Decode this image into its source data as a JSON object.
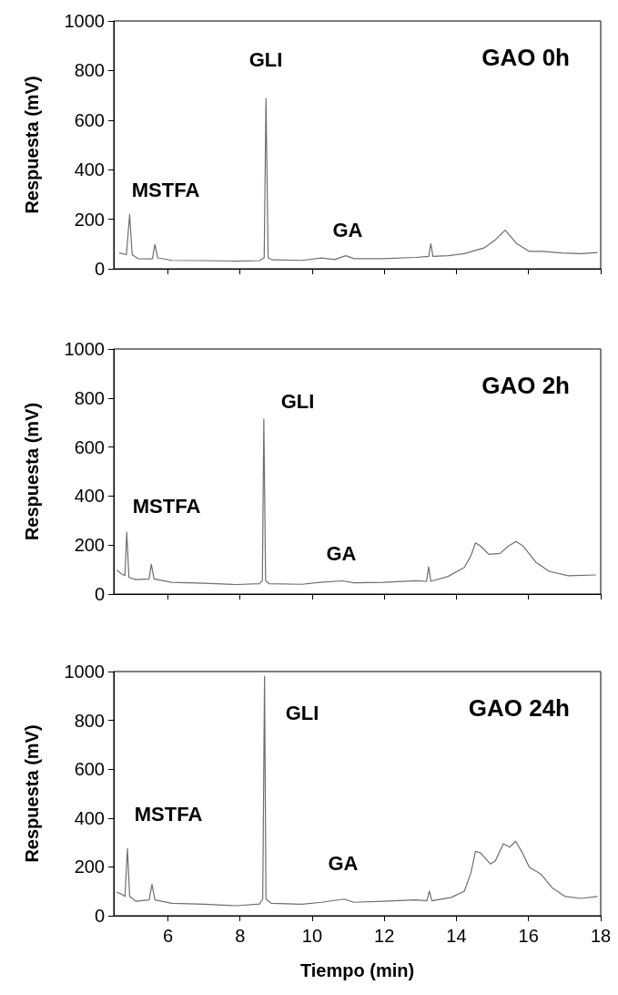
{
  "chart_data": [
    {
      "type": "line",
      "title": "GAO 0h",
      "ylabel": "Respuesta (mV)",
      "xlim": [
        4.5,
        18
      ],
      "xticks": [
        6,
        8,
        10,
        12,
        14,
        16,
        18
      ],
      "ylim": [
        0,
        1000
      ],
      "yticks": [
        0,
        200,
        400,
        600,
        800,
        1000
      ],
      "grid": false,
      "marker": "none",
      "line_style": "solid",
      "tick_labels": "y",
      "annotations": [
        "MSTFA",
        "GLI",
        "GA"
      ],
      "series": [
        {
          "color": "#6e6e6e",
          "x": [
            4.65,
            4.85,
            4.94,
            5.01,
            5.17,
            5.57,
            5.64,
            5.72,
            6.11,
            7.01,
            7.91,
            8.54,
            8.67,
            8.72,
            8.78,
            8.9,
            9.72,
            10.26,
            10.62,
            10.93,
            11.16,
            11.97,
            12.87,
            13.23,
            13.29,
            13.35,
            13.77,
            14.22,
            14.76,
            15.08,
            15.35,
            15.66,
            16.02,
            16.38,
            16.92,
            17.46,
            17.91
          ],
          "values": [
            64,
            57,
            219,
            57,
            41,
            40,
            98,
            44,
            34,
            33,
            31,
            33,
            44,
            687,
            44,
            36,
            34,
            44,
            37,
            53,
            41,
            41,
            46,
            50,
            101,
            50,
            53,
            61,
            84,
            117,
            156,
            103,
            70,
            70,
            64,
            61,
            66
          ]
        }
      ]
    },
    {
      "type": "line",
      "title": "GAO 2h",
      "ylabel": "Respuesta (mV)",
      "xlim": [
        4.5,
        18
      ],
      "xticks": [
        6,
        8,
        10,
        12,
        14,
        16,
        18
      ],
      "ylim": [
        0,
        1000
      ],
      "yticks": [
        0,
        200,
        400,
        600,
        800,
        1000
      ],
      "grid": false,
      "marker": "none",
      "line_style": "solid",
      "tick_labels": "y",
      "annotations": [
        "MSTFA",
        "GLI",
        "GA"
      ],
      "series": [
        {
          "color": "#6e6e6e",
          "x": [
            4.58,
            4.72,
            4.81,
            4.86,
            4.92,
            5.12,
            5.48,
            5.54,
            5.62,
            6.11,
            7.01,
            7.91,
            8.54,
            8.62,
            8.66,
            8.71,
            8.81,
            9.72,
            10.21,
            10.84,
            11.16,
            11.97,
            12.87,
            13.17,
            13.23,
            13.29,
            13.77,
            14.22,
            14.4,
            14.53,
            14.67,
            14.9,
            15.21,
            15.44,
            15.65,
            15.85,
            16.21,
            16.57,
            17.1,
            17.87
          ],
          "values": [
            98,
            82,
            75,
            252,
            68,
            59,
            62,
            121,
            62,
            48,
            44,
            39,
            42,
            55,
            714,
            55,
            42,
            40,
            48,
            54,
            46,
            48,
            54,
            52,
            111,
            52,
            72,
            109,
            156,
            209,
            196,
            162,
            166,
            196,
            215,
            196,
            129,
            93,
            75,
            78
          ]
        }
      ]
    },
    {
      "type": "line",
      "title": "GAO 24h",
      "xlabel": "Tiempo (min)",
      "ylabel": "Respuesta (mV)",
      "xlim": [
        4.5,
        18
      ],
      "xticks": [
        6,
        8,
        10,
        12,
        14,
        16,
        18
      ],
      "ylim": [
        0,
        1000
      ],
      "yticks": [
        0,
        200,
        400,
        600,
        800,
        1000
      ],
      "grid": false,
      "marker": "none",
      "line_style": "solid",
      "annotations": [
        "MSTFA",
        "GLI",
        "GA"
      ],
      "series": [
        {
          "color": "#6e6e6e",
          "x": [
            4.58,
            4.72,
            4.81,
            4.88,
            4.94,
            5.12,
            5.48,
            5.56,
            5.64,
            6.11,
            7.01,
            7.91,
            8.54,
            8.63,
            8.68,
            8.72,
            8.86,
            9.72,
            10.26,
            10.89,
            11.16,
            11.97,
            12.87,
            13.18,
            13.25,
            13.32,
            13.86,
            14.22,
            14.4,
            14.53,
            14.67,
            14.94,
            15.08,
            15.3,
            15.48,
            15.64,
            15.84,
            16.02,
            16.34,
            16.65,
            17.01,
            17.46,
            17.91
          ],
          "values": [
            97,
            88,
            79,
            275,
            79,
            59,
            65,
            128,
            65,
            51,
            47,
            41,
            48,
            68,
            981,
            68,
            51,
            47,
            55,
            68,
            55,
            59,
            65,
            61,
            101,
            61,
            75,
            101,
            175,
            264,
            257,
            212,
            225,
            295,
            281,
            305,
            255,
            199,
            171,
            115,
            79,
            71,
            79
          ]
        }
      ]
    }
  ]
}
